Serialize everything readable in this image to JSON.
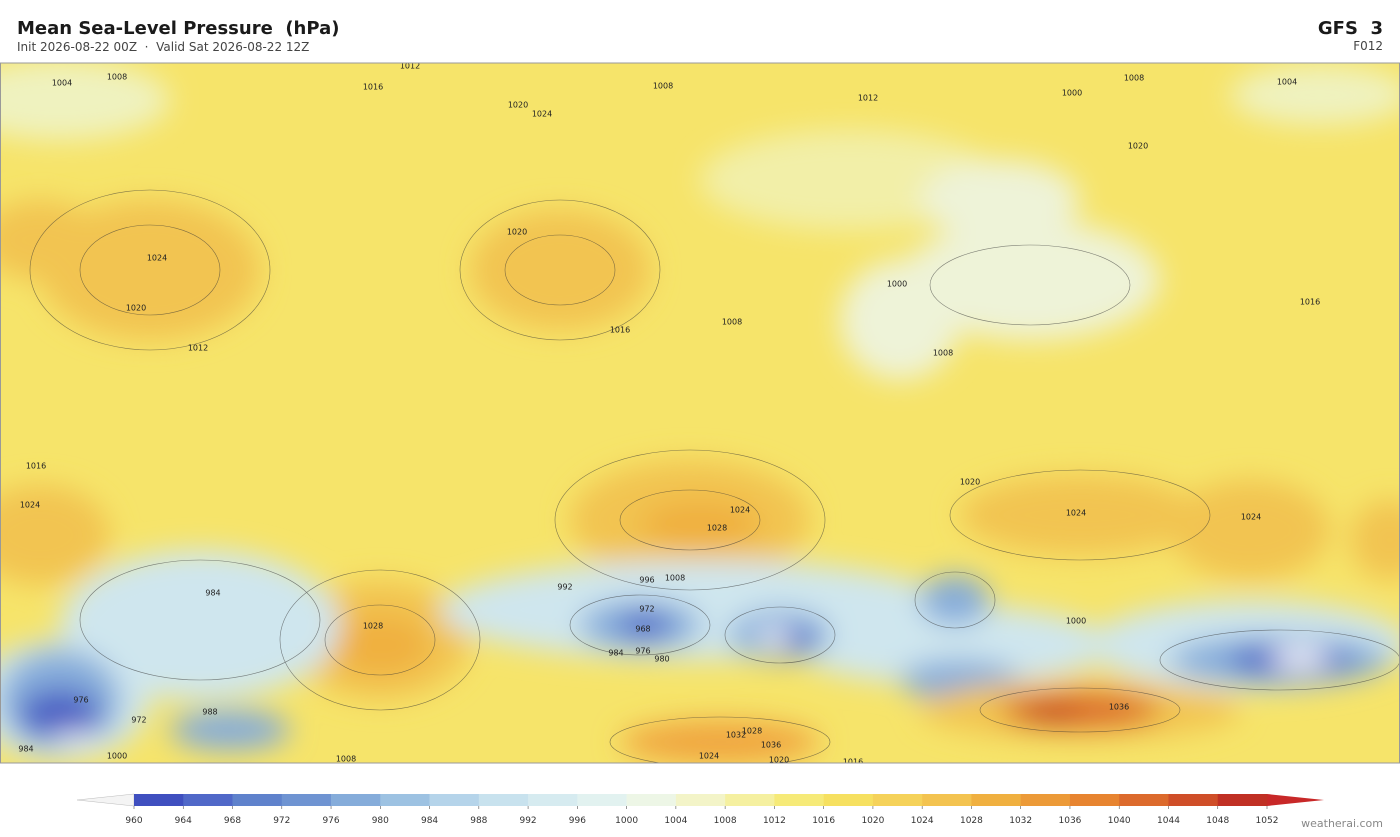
{
  "header": {
    "title": "Mean Sea-Level Pressure  (hPa)",
    "subtitle": "Init 2026-08-22 00Z  ·  Valid Sat 2026-08-22 12Z",
    "model": "GFS  3",
    "frame": "F012"
  },
  "map": {
    "contour_labels": [
      "1004",
      "1008",
      "1012",
      "1016",
      "1020",
      "1024",
      "1008",
      "1012",
      "1008",
      "1004",
      "1000",
      "1024",
      "1020",
      "1012",
      "1020",
      "1016",
      "1008",
      "1000",
      "1008",
      "1016",
      "1020",
      "1020",
      "1024",
      "1024",
      "1028",
      "1024",
      "1028",
      "1016",
      "1024",
      "992",
      "996",
      "1008",
      "984",
      "972",
      "968",
      "976",
      "980",
      "984",
      "1000",
      "1036",
      "1032",
      "1028",
      "1036",
      "1024",
      "1020",
      "1016",
      "1008",
      "1000",
      "984",
      "988",
      "972",
      "976"
    ]
  },
  "colorbar": {
    "ticks": [
      960,
      964,
      968,
      972,
      976,
      980,
      984,
      988,
      992,
      996,
      1000,
      1004,
      1008,
      1012,
      1016,
      1020,
      1024,
      1028,
      1032,
      1036,
      1040,
      1044,
      1048,
      1052
    ],
    "colors": [
      "#3f4fbf",
      "#5068c8",
      "#5f82cc",
      "#6f94d2",
      "#85acda",
      "#9dc2e2",
      "#b5d4ea",
      "#c8e2ee",
      "#d6ebf0",
      "#e2f2f0",
      "#edf6e6",
      "#f3f4c8",
      "#f5f0a0",
      "#f6ea78",
      "#f6e060",
      "#f5d25a",
      "#f3c350",
      "#f0b040",
      "#ec9a38",
      "#e78430",
      "#dc6a2c",
      "#cf4e28",
      "#c03024"
    ],
    "under_color": "#f4f4f4",
    "over_color": "#c82828"
  },
  "footer": {
    "credit": "weatherai.com"
  }
}
